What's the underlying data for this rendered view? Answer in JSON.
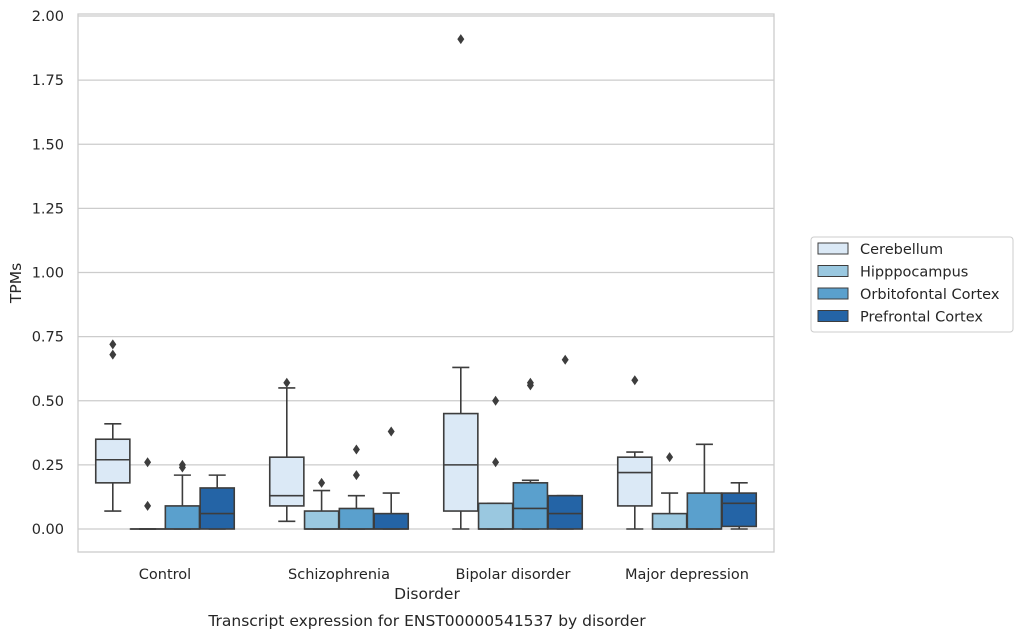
{
  "chart_data": {
    "type": "box",
    "title": "",
    "caption": "Transcript expression for ENST00000541537 by disorder",
    "xlabel": "Disorder",
    "ylabel": "TPMs",
    "ylim": [
      -0.09,
      2.01
    ],
    "yticks": [
      0.0,
      0.25,
      0.5,
      0.75,
      1.0,
      1.25,
      1.5,
      1.75,
      2.0
    ],
    "ytick_labels": [
      "0.00",
      "0.25",
      "0.50",
      "0.75",
      "1.00",
      "1.25",
      "1.50",
      "1.75",
      "2.00"
    ],
    "grid": "horizontal",
    "legend_position": "right-center",
    "categories": [
      "Control",
      "Schizophrenia",
      "Bipolar disorder",
      "Major depression"
    ],
    "series": [
      {
        "name": "Cerebellum",
        "color": "#dbe9f6",
        "boxes": [
          {
            "q1": 0.18,
            "median": 0.27,
            "q3": 0.35,
            "whislo": 0.07,
            "whishi": 0.41,
            "fliers": [
              0.72,
              0.68
            ]
          },
          {
            "q1": 0.09,
            "median": 0.13,
            "q3": 0.28,
            "whislo": 0.03,
            "whishi": 0.55,
            "fliers": [
              0.57
            ]
          },
          {
            "q1": 0.07,
            "median": 0.25,
            "q3": 0.45,
            "whislo": 0.0,
            "whishi": 0.63,
            "fliers": [
              1.91
            ]
          },
          {
            "q1": 0.09,
            "median": 0.22,
            "q3": 0.28,
            "whislo": 0.0,
            "whishi": 0.3,
            "fliers": [
              0.58
            ]
          }
        ]
      },
      {
        "name": "Hipppocampus",
        "color": "#9ac8e0",
        "boxes": [
          {
            "q1": 0.0,
            "median": 0.0,
            "q3": 0.0,
            "whislo": 0.0,
            "whishi": 0.0,
            "fliers": [
              0.26,
              0.09
            ]
          },
          {
            "q1": 0.0,
            "median": 0.0,
            "q3": 0.07,
            "whislo": 0.0,
            "whishi": 0.15,
            "fliers": [
              0.18
            ]
          },
          {
            "q1": 0.0,
            "median": 0.0,
            "q3": 0.1,
            "whislo": 0.0,
            "whishi": 0.1,
            "fliers": [
              0.5,
              0.26
            ]
          },
          {
            "q1": 0.0,
            "median": 0.0,
            "q3": 0.06,
            "whislo": 0.0,
            "whishi": 0.14,
            "fliers": [
              0.28
            ]
          }
        ]
      },
      {
        "name": "Orbitofontal Cortex",
        "color": "#5aa0cd",
        "boxes": [
          {
            "q1": 0.0,
            "median": 0.0,
            "q3": 0.09,
            "whislo": 0.0,
            "whishi": 0.21,
            "fliers": [
              0.24,
              0.25
            ]
          },
          {
            "q1": 0.0,
            "median": 0.0,
            "q3": 0.08,
            "whislo": 0.0,
            "whishi": 0.13,
            "fliers": [
              0.31,
              0.21
            ]
          },
          {
            "q1": 0.0,
            "median": 0.08,
            "q3": 0.18,
            "whislo": 0.0,
            "whishi": 0.19,
            "fliers": [
              0.57,
              0.56
            ]
          },
          {
            "q1": 0.0,
            "median": 0.0,
            "q3": 0.14,
            "whislo": 0.0,
            "whishi": 0.33,
            "fliers": []
          }
        ]
      },
      {
        "name": "Prefrontal Cortex",
        "color": "#2464a6",
        "boxes": [
          {
            "q1": 0.0,
            "median": 0.06,
            "q3": 0.16,
            "whislo": 0.0,
            "whishi": 0.21,
            "fliers": []
          },
          {
            "q1": 0.0,
            "median": 0.0,
            "q3": 0.06,
            "whislo": 0.0,
            "whishi": 0.14,
            "fliers": [
              0.38
            ]
          },
          {
            "q1": 0.0,
            "median": 0.06,
            "q3": 0.13,
            "whislo": 0.0,
            "whishi": 0.13,
            "fliers": [
              0.66
            ]
          },
          {
            "q1": 0.01,
            "median": 0.1,
            "q3": 0.14,
            "whislo": 0.0,
            "whishi": 0.18,
            "fliers": []
          }
        ]
      }
    ]
  }
}
